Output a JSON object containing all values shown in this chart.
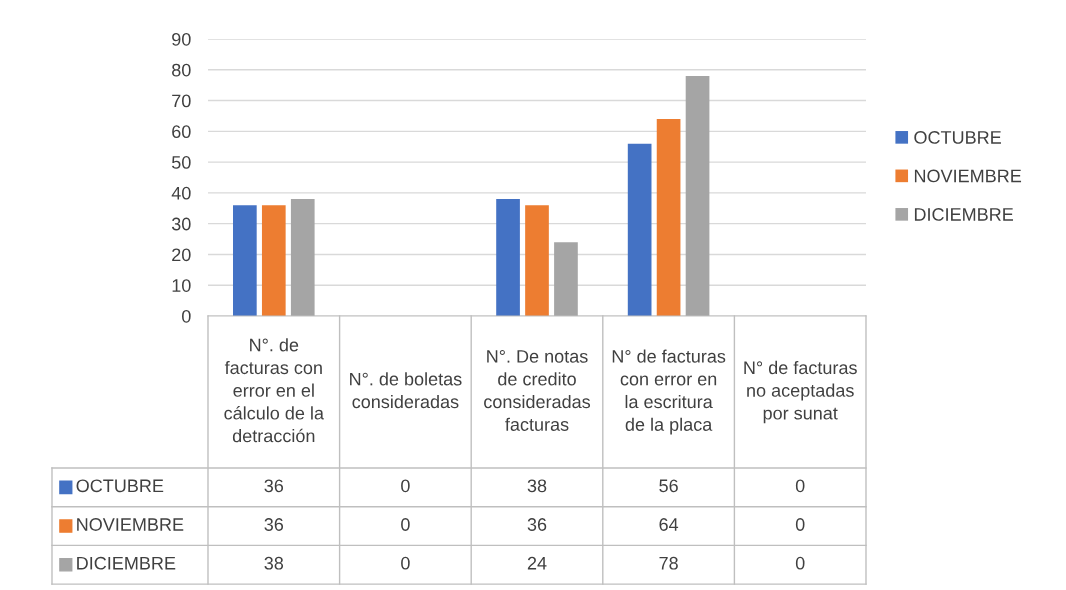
{
  "chart_data": {
    "type": "bar",
    "categories": [
      "N°. de facturas con error en el cálculo de la detracción",
      "N°. de boletas consideradas",
      "N°. De notas de credito consideradas facturas",
      "N° de facturas con error en la escritura de la placa",
      "N° de facturas no aceptadas por sunat"
    ],
    "series": [
      {
        "name": "OCTUBRE",
        "color": "#4472c4",
        "values": [
          36,
          0,
          38,
          56,
          0
        ]
      },
      {
        "name": "NOVIEMBRE",
        "color": "#ed7d31",
        "values": [
          36,
          0,
          36,
          64,
          0
        ]
      },
      {
        "name": "DICIEMBRE",
        "color": "#a5a5a5",
        "values": [
          38,
          0,
          24,
          78,
          0
        ]
      }
    ],
    "ylim": [
      0,
      90
    ],
    "yticks": [
      0,
      10,
      20,
      30,
      40,
      50,
      60,
      70,
      80,
      90
    ],
    "grid": "y",
    "legend": "right",
    "data_labels": true
  }
}
